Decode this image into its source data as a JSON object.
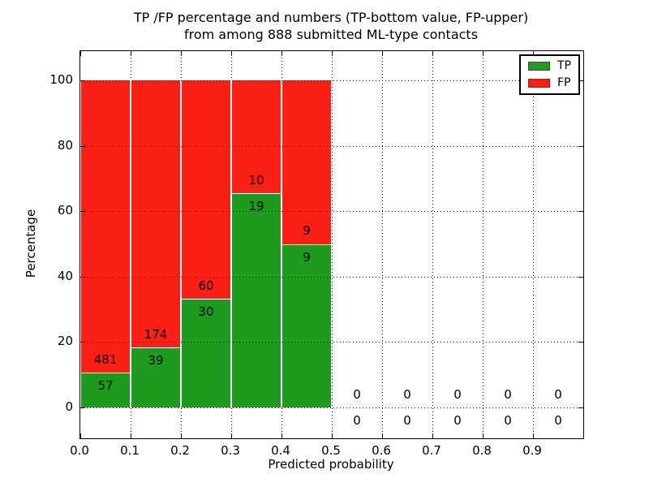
{
  "figure": {
    "title_line1": "TP /FP percentage and numbers (TP-bottom value, FP-upper)",
    "title_line2": "from among 888 submitted ML-type contacts",
    "xlabel": "Predicted probability",
    "ylabel": "Percentage"
  },
  "chart_data": {
    "type": "bar",
    "stacked": true,
    "normalized_to_percent": true,
    "title": "TP /FP percentage and numbers (TP-bottom value, FP-upper) from among 888 submitted ML-type contacts",
    "xlabel": "Predicted probability",
    "ylabel": "Percentage",
    "total_contacts": 888,
    "bin_width": 0.1,
    "bin_starts": [
      0.0,
      0.1,
      0.2,
      0.3,
      0.4,
      0.5,
      0.6,
      0.7,
      0.8,
      0.9
    ],
    "xticks": [
      "0.0",
      "0.1",
      "0.2",
      "0.3",
      "0.4",
      "0.5",
      "0.6",
      "0.7",
      "0.8",
      "0.9"
    ],
    "yticks": [
      0,
      20,
      40,
      60,
      80,
      100
    ],
    "xlim": [
      0.0,
      1.0
    ],
    "ylim_approx": [
      -10,
      110
    ],
    "grid": "dotted both axes",
    "series": [
      {
        "name": "TP",
        "position": "bottom",
        "color": "#1E9B1E",
        "values": [
          57,
          39,
          30,
          19,
          9,
          0,
          0,
          0,
          0,
          0
        ]
      },
      {
        "name": "FP",
        "position": "top",
        "color": "#FB2015",
        "values": [
          481,
          174,
          60,
          10,
          9,
          0,
          0,
          0,
          0,
          0
        ]
      }
    ],
    "tp_percent_of_bin": [
      10.59,
      18.31,
      33.33,
      65.52,
      50.0,
      0,
      0,
      0,
      0,
      0
    ],
    "legend": {
      "position": "upper right",
      "entries": [
        {
          "name": "TP",
          "color": "#1E9B1E"
        },
        {
          "name": "FP",
          "color": "#FB2015"
        }
      ]
    }
  }
}
